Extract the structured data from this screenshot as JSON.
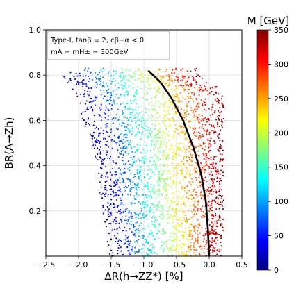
{
  "chart_data": {
    "type": "scatter",
    "xlabel": "ΔR(h→ZZ*) [%]",
    "ylabel": "BR(A→Zh)",
    "xlim": [
      -2.5,
      0.5
    ],
    "ylim": [
      0.0,
      1.0
    ],
    "xticks": [
      "−2.5",
      "−2.0",
      "−1.5",
      "−1.0",
      "−0.5",
      "0.0",
      "0.5"
    ],
    "yticks": [
      "0.2",
      "0.4",
      "0.6",
      "0.8",
      "1.0"
    ],
    "xtick_values": [
      -2.5,
      -2.0,
      -1.5,
      -1.0,
      -0.5,
      0.0,
      0.5
    ],
    "ytick_values": [
      0.2,
      0.4,
      0.6,
      0.8,
      1.0
    ],
    "grid": true,
    "legend_position": "top-left",
    "legend_lines": [
      "Type-I, tanβ = 2, cβ−α < 0",
      "mA = mH± = 300GeV"
    ],
    "colorbar": {
      "title": "M [GeV]",
      "range": [
        0,
        350
      ],
      "ticks": [
        "0",
        "50",
        "100",
        "150",
        "200",
        "250",
        "300",
        "350"
      ],
      "tick_values": [
        0,
        50,
        100,
        150,
        200,
        250,
        300,
        350
      ],
      "colormap": "jet"
    },
    "scatter_band": {
      "x_range": [
        -2.3,
        0.2
      ],
      "y_range": [
        0.0,
        0.83
      ],
      "color_variable": "M [GeV]",
      "trend": "M increases from left (blue, low M) to right (red, high M)"
    },
    "curve": {
      "color": "#000000",
      "points": [
        [
          -0.93,
          0.82
        ],
        [
          -0.75,
          0.77
        ],
        [
          -0.58,
          0.7
        ],
        [
          -0.4,
          0.6
        ],
        [
          -0.24,
          0.48
        ],
        [
          -0.12,
          0.36
        ],
        [
          -0.05,
          0.24
        ],
        [
          -0.02,
          0.12
        ],
        [
          0.0,
          0.0
        ]
      ]
    }
  }
}
